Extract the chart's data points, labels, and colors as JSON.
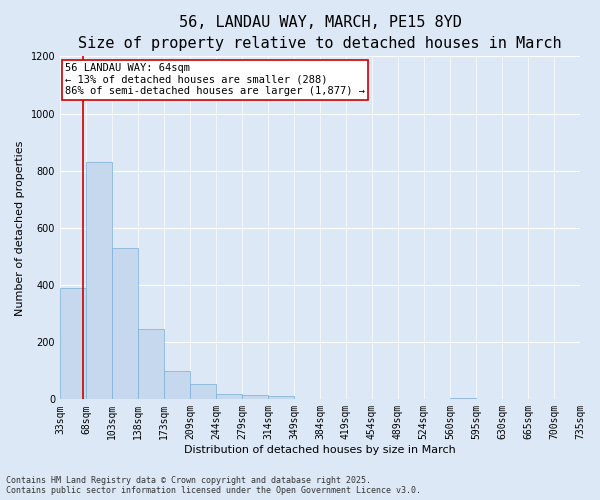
{
  "title_line1": "56, LANDAU WAY, MARCH, PE15 8YD",
  "title_line2": "Size of property relative to detached houses in March",
  "xlabel": "Distribution of detached houses by size in March",
  "ylabel": "Number of detached properties",
  "bar_edges": [
    33,
    68,
    103,
    138,
    173,
    209,
    244,
    279,
    314,
    349,
    384,
    419,
    454,
    489,
    524,
    560,
    595,
    630,
    665,
    700,
    735
  ],
  "bar_values": [
    390,
    830,
    530,
    245,
    100,
    55,
    20,
    15,
    10,
    0,
    0,
    0,
    0,
    0,
    0,
    5,
    0,
    0,
    0,
    0
  ],
  "bar_color": "#c5d8ee",
  "bar_edge_color": "#7aadd4",
  "property_line_x": 64,
  "property_line_color": "#cc0000",
  "annotation_text": "56 LANDAU WAY: 64sqm\n← 13% of detached houses are smaller (288)\n86% of semi-detached houses are larger (1,877) →",
  "annotation_box_color": "#ffffff",
  "annotation_box_edge": "#cc0000",
  "ylim": [
    0,
    1200
  ],
  "yticks": [
    0,
    200,
    400,
    600,
    800,
    1000,
    1200
  ],
  "background_color": "#dce8f5",
  "plot_bg_color": "#dce8f5",
  "grid_color": "#ffffff",
  "footer_line1": "Contains HM Land Registry data © Crown copyright and database right 2025.",
  "footer_line2": "Contains public sector information licensed under the Open Government Licence v3.0.",
  "title_fontsize": 11,
  "subtitle_fontsize": 9,
  "axis_label_fontsize": 8,
  "tick_fontsize": 7,
  "annotation_fontsize": 7.5,
  "footer_fontsize": 6
}
